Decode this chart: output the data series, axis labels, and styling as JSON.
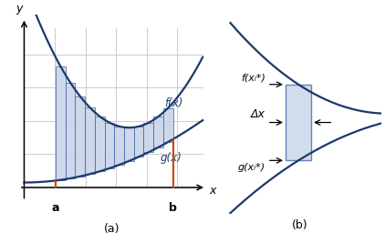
{
  "bg_color": "#ffffff",
  "curve_color": "#1a3a6b",
  "fill_color": "#c8d4e8",
  "fill_alpha": 0.55,
  "bar_edge_color": "#4466aa",
  "orange_line_color": "#cc4400",
  "grid_color": "#cccccc",
  "panel_a_label": "(a)",
  "panel_b_label": "(b)",
  "fx_label": "f(x)",
  "gx_label": "g(x)",
  "fxi_label": "f(xᵢ*)",
  "gxi_label": "g(xᵢ*)",
  "a_label": "a",
  "b_label": "b",
  "deltax_label": "Δx",
  "n_bars": 12,
  "a_val": 1.8,
  "b_val": 8.5
}
